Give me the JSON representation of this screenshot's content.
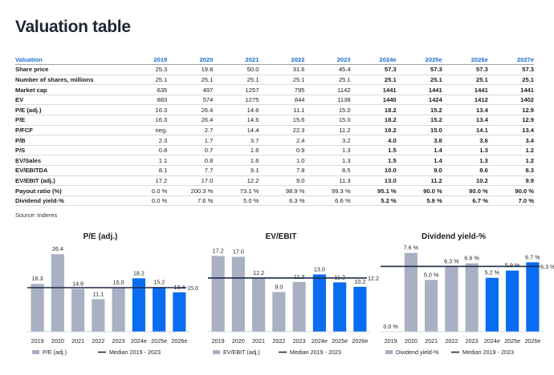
{
  "title": "Valuation table",
  "source": "Source: Inderes",
  "table": {
    "corner": "Valuation",
    "years": [
      "2019",
      "2020",
      "2021",
      "2022",
      "2023",
      "2024e",
      "2025e",
      "2026e",
      "2027e"
    ],
    "rows": [
      {
        "label": "Share price",
        "values": [
          "25.3",
          "19.8",
          "50.0",
          "31.6",
          "45.4",
          "57.3",
          "57.3",
          "57.3",
          "57.3"
        ]
      },
      {
        "label": "Number of shares, millions",
        "values": [
          "25.1",
          "25.1",
          "25.1",
          "25.1",
          "25.1",
          "25.1",
          "25.1",
          "25.1",
          "25.1"
        ]
      },
      {
        "label": "Market cap",
        "values": [
          "635",
          "497",
          "1257",
          "795",
          "1142",
          "1441",
          "1441",
          "1441",
          "1441"
        ]
      },
      {
        "label": "EV",
        "values": [
          "883",
          "574",
          "1275",
          "844",
          "1138",
          "1440",
          "1424",
          "1412",
          "1402"
        ]
      },
      {
        "label": "P/E (adj.)",
        "values": [
          "16.3",
          "26.4",
          "14.6",
          "11.1",
          "15.0",
          "18.2",
          "15.2",
          "13.4",
          "12.9"
        ]
      },
      {
        "label": "P/E",
        "values": [
          "16.3",
          "26.4",
          "14.6",
          "15.6",
          "15.0",
          "18.2",
          "15.2",
          "13.4",
          "12.9"
        ]
      },
      {
        "label": "P/FCF",
        "values": [
          "neg.",
          "2.7",
          "14.4",
          "22.3",
          "11.2",
          "19.2",
          "15.0",
          "14.1",
          "13.4"
        ]
      },
      {
        "label": "P/B",
        "values": [
          "2.3",
          "1.7",
          "3.7",
          "2.4",
          "3.2",
          "4.0",
          "3.8",
          "3.6",
          "3.4"
        ]
      },
      {
        "label": "P/S",
        "values": [
          "0.8",
          "0.7",
          "1.6",
          "0.9",
          "1.3",
          "1.5",
          "1.4",
          "1.3",
          "1.2"
        ]
      },
      {
        "label": "EV/Sales",
        "values": [
          "1.1",
          "0.8",
          "1.6",
          "1.0",
          "1.3",
          "1.5",
          "1.4",
          "1.3",
          "1.2"
        ]
      },
      {
        "label": "EV/EBITDA",
        "values": [
          "8.1",
          "7.7",
          "9.1",
          "7.8",
          "8.5",
          "10.0",
          "9.0",
          "8.6",
          "8.3"
        ]
      },
      {
        "label": "EV/EBIT (adj.)",
        "values": [
          "17.2",
          "17.0",
          "12.2",
          "9.0",
          "11.3",
          "13.0",
          "11.2",
          "10.2",
          "9.9"
        ]
      },
      {
        "label": "Payout ratio (%)",
        "values": [
          "0.0 %",
          "200.3 %",
          "73.1 %",
          "98.9 %",
          "99.3 %",
          "95.1 %",
          "90.0 %",
          "90.0 %",
          "90.0 %"
        ]
      },
      {
        "label": "Dividend yield-%",
        "values": [
          "0.0 %",
          "7.6 %",
          "5.0 %",
          "6.3 %",
          "6.6 %",
          "5.2 %",
          "5.9 %",
          "6.7 %",
          "7.0 %"
        ]
      }
    ]
  },
  "colors": {
    "historic": "#a9b0c3",
    "forecast": "#0a6cf0",
    "median": "#1e2a4a",
    "header": "#1c6dd0"
  },
  "chart_data": [
    {
      "type": "bar",
      "title": "P/E (adj.)",
      "categories": [
        "2019",
        "2020",
        "2021",
        "2022",
        "2023",
        "2024e",
        "2025e",
        "2026e"
      ],
      "values": [
        16.3,
        26.4,
        14.6,
        11.1,
        15.0,
        18.2,
        15.2,
        13.4
      ],
      "labels": [
        "16.3",
        "26.4",
        "14.6",
        "11.1",
        "15.0",
        "18.2",
        "15.2",
        "13.4"
      ],
      "forecast_from": 5,
      "median": 15.0,
      "median_label": "15.0",
      "ylim": [
        0,
        30
      ],
      "legend": [
        "P/E (adj.)",
        "Median 2019 - 2023"
      ]
    },
    {
      "type": "bar",
      "title": "EV/EBIT",
      "categories": [
        "2019",
        "2020",
        "2021",
        "2022",
        "2023",
        "2024e",
        "2025e",
        "2026e"
      ],
      "values": [
        17.2,
        17.0,
        12.2,
        9.0,
        11.3,
        13.0,
        11.2,
        10.2
      ],
      "labels": [
        "17.2",
        "17.0",
        "12.2",
        "9.0",
        "11.3",
        "13.0",
        "11.2",
        "10.2"
      ],
      "forecast_from": 5,
      "median": 12.2,
      "median_label": "12.2",
      "ylim": [
        0,
        20
      ],
      "legend": [
        "EV/EBIT (adj.)",
        "Median 2019 - 2023"
      ]
    },
    {
      "type": "bar",
      "title": "Dividend yield-%",
      "categories": [
        "2019",
        "2020",
        "2021",
        "2022",
        "2023",
        "2024e",
        "2025e",
        "2026e"
      ],
      "values": [
        0.0,
        7.6,
        5.0,
        6.3,
        6.6,
        5.2,
        5.9,
        6.7
      ],
      "labels": [
        "0.0 %",
        "7.6 %",
        "5.0 %",
        "6.3 %",
        "6.6 %",
        "5.2 %",
        "5.9 %",
        "6.7 %"
      ],
      "forecast_from": 5,
      "median": 6.3,
      "median_label": "6.3 %",
      "ylim": [
        0,
        8.5
      ],
      "legend": [
        "Dividend yield-%",
        "Median 2019 - 2023"
      ]
    }
  ]
}
